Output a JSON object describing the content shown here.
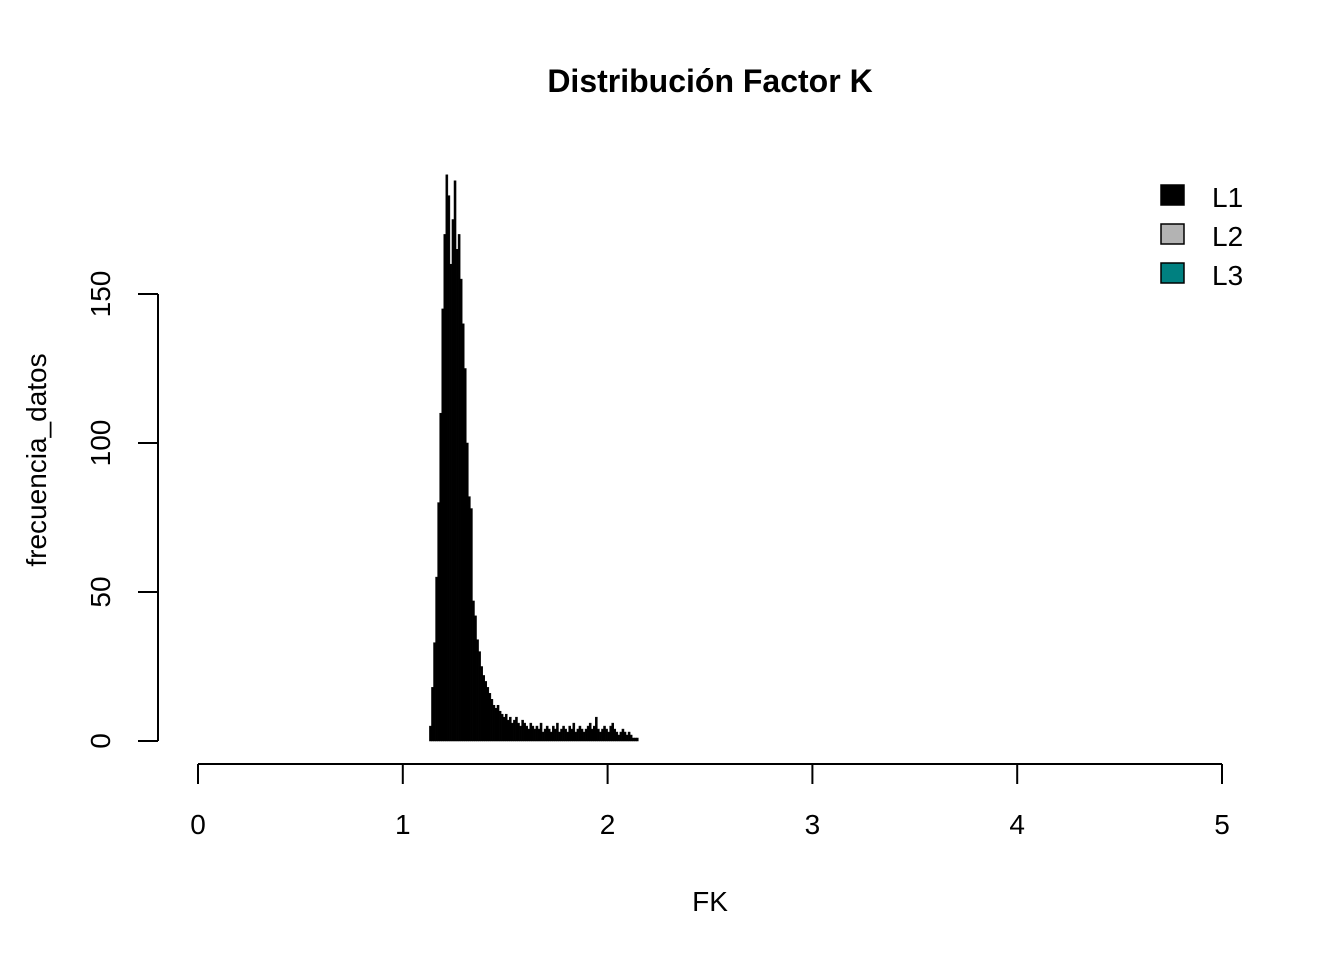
{
  "chart_data": {
    "type": "bar",
    "title": "Distribución Factor K",
    "xlabel": "FK",
    "ylabel": "frecuencia_datos",
    "xlim": [
      0,
      5
    ],
    "ylim": [
      0,
      150
    ],
    "x_ticks": [
      "0",
      "1",
      "2",
      "3",
      "4",
      "5"
    ],
    "y_ticks": [
      "0",
      "50",
      "100",
      "150"
    ],
    "grid": false,
    "legend": {
      "position": "top-right",
      "entries": [
        {
          "label": "L1",
          "color": "#000000"
        },
        {
          "label": "L2",
          "color": "#b3b3b3"
        },
        {
          "label": "L3",
          "color": "#008080"
        }
      ]
    },
    "series": [
      {
        "name": "L1",
        "color": "#000000",
        "bin_width": 0.01,
        "x": [
          1.13,
          1.14,
          1.15,
          1.16,
          1.17,
          1.18,
          1.19,
          1.2,
          1.21,
          1.22,
          1.23,
          1.24,
          1.25,
          1.26,
          1.27,
          1.28,
          1.29,
          1.3,
          1.31,
          1.32,
          1.33,
          1.34,
          1.35,
          1.36,
          1.37,
          1.38,
          1.39,
          1.4,
          1.41,
          1.42,
          1.43,
          1.44,
          1.45,
          1.46,
          1.47,
          1.48,
          1.49,
          1.5,
          1.51,
          1.52,
          1.53,
          1.54,
          1.55,
          1.56,
          1.57,
          1.58,
          1.59,
          1.6,
          1.61,
          1.62,
          1.63,
          1.64,
          1.65,
          1.66,
          1.67,
          1.68,
          1.69,
          1.7,
          1.71,
          1.72,
          1.73,
          1.74,
          1.75,
          1.76,
          1.77,
          1.78,
          1.79,
          1.8,
          1.81,
          1.82,
          1.83,
          1.84,
          1.85,
          1.86,
          1.87,
          1.88,
          1.89,
          1.9,
          1.91,
          1.92,
          1.93,
          1.94,
          1.95,
          1.96,
          1.97,
          1.98,
          1.99,
          2.0,
          2.01,
          2.02,
          2.03,
          2.04,
          2.05,
          2.06,
          2.07,
          2.08,
          2.09,
          2.1,
          2.11,
          2.12,
          2.13,
          2.14
        ],
        "values": [
          5,
          18,
          33,
          55,
          80,
          110,
          145,
          170,
          190,
          183,
          160,
          175,
          188,
          165,
          170,
          155,
          140,
          125,
          100,
          82,
          78,
          47,
          42,
          34,
          30,
          25,
          22,
          20,
          18,
          16,
          14,
          12,
          11,
          12,
          10,
          9,
          8,
          9,
          7,
          8,
          6,
          7,
          8,
          6,
          5,
          7,
          6,
          5,
          4,
          6,
          5,
          4,
          5,
          4,
          6,
          3,
          4,
          5,
          4,
          3,
          5,
          4,
          6,
          3,
          4,
          5,
          4,
          3,
          5,
          4,
          6,
          3,
          4,
          5,
          4,
          3,
          4,
          5,
          6,
          4,
          5,
          8,
          4,
          3,
          4,
          5,
          4,
          3,
          5,
          6,
          4,
          3,
          2,
          3,
          4,
          3,
          2,
          3,
          2,
          1,
          1,
          1
        ]
      }
    ]
  }
}
